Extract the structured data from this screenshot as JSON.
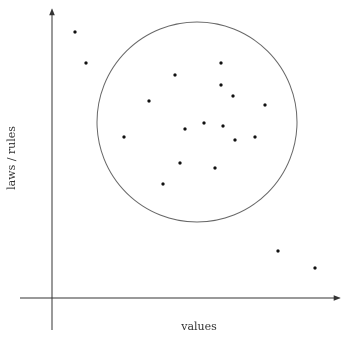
{
  "labels": {
    "x_axis": "values",
    "y_axis": "laws / rules"
  },
  "colors": {
    "axis": "#333333",
    "circle": "#666666",
    "point": "#111111",
    "background": "#ffffff"
  },
  "points": {
    "inside_count": 17,
    "outside_count": 4
  }
}
